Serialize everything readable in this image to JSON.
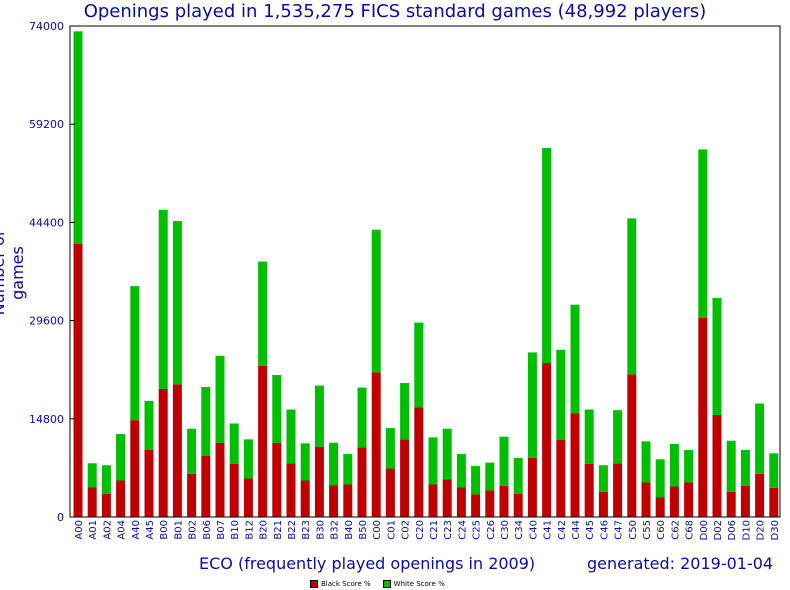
{
  "chart_data": {
    "type": "bar",
    "stacked": true,
    "title": "Openings played in 1,535,275 FICS standard games (48,992 players)",
    "xlabel": "ECO (frequently played openings in 2009)",
    "ylabel": "Number of games",
    "footer": "generated: 2019-01-04",
    "ylim": [
      0,
      74000
    ],
    "yticks": [
      "74000",
      "59200",
      "44400",
      "29600",
      "14800",
      "0"
    ],
    "grid": false,
    "legend_position": "bottom-center",
    "colors": {
      "black": "#c00000",
      "white": "#00bf00",
      "axis_text": "#0a0aa8"
    },
    "categories": [
      "A00",
      "A01",
      "A02",
      "A04",
      "A40",
      "A45",
      "B00",
      "B01",
      "B02",
      "B06",
      "B07",
      "B10",
      "B12",
      "B20",
      "B21",
      "B22",
      "B23",
      "B30",
      "B32",
      "B40",
      "B50",
      "C00",
      "C01",
      "C02",
      "C20",
      "C21",
      "C23",
      "C24",
      "C25",
      "C26",
      "C30",
      "C34",
      "C40",
      "C41",
      "C42",
      "C44",
      "C45",
      "C46",
      "C47",
      "C50",
      "C55",
      "C60",
      "C62",
      "C68",
      "D00",
      "D02",
      "D06",
      "D10",
      "D20",
      "D30"
    ],
    "series": [
      {
        "name": "Black Score %",
        "values": [
          41200,
          4500,
          3500,
          5500,
          14600,
          10100,
          19300,
          20000,
          6500,
          9200,
          11200,
          8000,
          5800,
          22800,
          11200,
          8100,
          5500,
          10600,
          4800,
          4900,
          10500,
          21800,
          7300,
          11700,
          16500,
          4900,
          5700,
          4500,
          3400,
          4000,
          4700,
          3500,
          8900,
          23200,
          11600,
          15600,
          8000,
          3800,
          8100,
          21500,
          5200,
          3000,
          4600,
          5200,
          30000,
          15400,
          3800,
          4700,
          6500,
          4400
        ]
      },
      {
        "name": "White Score %",
        "values": [
          32000,
          3600,
          4300,
          7000,
          20200,
          7400,
          27000,
          24600,
          6800,
          10400,
          13100,
          6100,
          5900,
          15700,
          10200,
          8100,
          5600,
          9200,
          6400,
          4600,
          9000,
          21500,
          6100,
          8500,
          12800,
          7100,
          7600,
          5000,
          4300,
          4200,
          7400,
          5400,
          15900,
          32400,
          13600,
          16400,
          8200,
          4000,
          8000,
          23500,
          6200,
          5700,
          6400,
          4900,
          25400,
          17600,
          7700,
          5400,
          10600,
          5200
        ]
      }
    ]
  }
}
